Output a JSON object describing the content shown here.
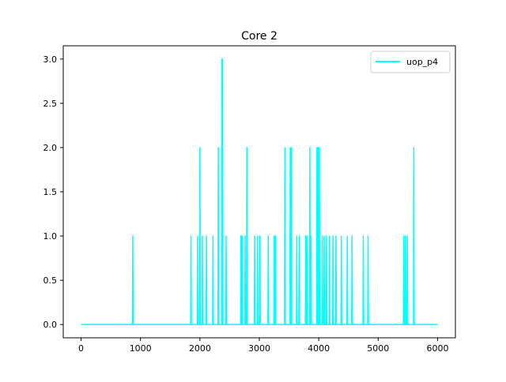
{
  "chart_data": {
    "type": "line",
    "title": "Core 2",
    "xlabel": "",
    "ylabel": "",
    "xlim": [
      -300,
      6300
    ],
    "ylim": [
      -0.15,
      3.15
    ],
    "xticks": [
      0,
      1000,
      2000,
      3000,
      4000,
      5000,
      6000
    ],
    "xtick_labels": [
      "0",
      "1000",
      "2000",
      "3000",
      "4000",
      "5000",
      "6000"
    ],
    "yticks": [
      0.0,
      0.5,
      1.0,
      1.5,
      2.0,
      2.5,
      3.0
    ],
    "ytick_labels": [
      "0.0",
      "0.5",
      "1.0",
      "1.5",
      "2.0",
      "2.5",
      "3.0"
    ],
    "grid": false,
    "legend_position": "upper right",
    "series": [
      {
        "name": "uop_p4",
        "color": "#00ffff",
        "x_range": [
          0,
          6000
        ],
        "baseline": 0,
        "spikes": [
          [
            870,
            1
          ],
          [
            1850,
            1
          ],
          [
            1960,
            1
          ],
          [
            2000,
            2
          ],
          [
            2040,
            1
          ],
          [
            2110,
            1
          ],
          [
            2220,
            1
          ],
          [
            2310,
            2
          ],
          [
            2370,
            3
          ],
          [
            2380,
            3
          ],
          [
            2440,
            1
          ],
          [
            2690,
            1
          ],
          [
            2710,
            1
          ],
          [
            2760,
            1
          ],
          [
            2790,
            2
          ],
          [
            2920,
            1
          ],
          [
            2970,
            1
          ],
          [
            3010,
            1
          ],
          [
            3150,
            1
          ],
          [
            3250,
            1
          ],
          [
            3270,
            1
          ],
          [
            3430,
            2
          ],
          [
            3520,
            2
          ],
          [
            3540,
            2
          ],
          [
            3630,
            1
          ],
          [
            3670,
            1
          ],
          [
            3780,
            1
          ],
          [
            3800,
            1
          ],
          [
            3850,
            2
          ],
          [
            3870,
            1
          ],
          [
            3970,
            2
          ],
          [
            3990,
            2
          ],
          [
            4010,
            2
          ],
          [
            4060,
            1
          ],
          [
            4090,
            1
          ],
          [
            4130,
            1
          ],
          [
            4180,
            1
          ],
          [
            4240,
            1
          ],
          [
            4290,
            1
          ],
          [
            4380,
            1
          ],
          [
            4480,
            1
          ],
          [
            4560,
            1
          ],
          [
            4750,
            1
          ],
          [
            4830,
            1
          ],
          [
            5430,
            1
          ],
          [
            5460,
            1
          ],
          [
            5490,
            1
          ],
          [
            5600,
            2
          ]
        ]
      }
    ]
  }
}
